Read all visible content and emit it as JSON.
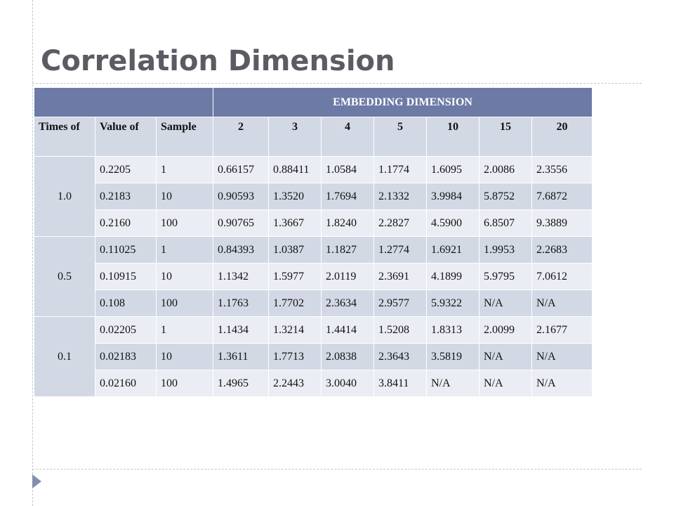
{
  "slide": {
    "title": "Correlation Dimension"
  },
  "table": {
    "embedding_header": "EMBEDDING DIMENSION",
    "headers": [
      "Times of",
      "Value of",
      "Sample",
      "2",
      "3",
      "4",
      "5",
      "10",
      "15",
      "20"
    ],
    "groups": [
      {
        "label": "1.0",
        "rows": [
          [
            "0.2205",
            "1",
            "0.66157",
            "0.88411",
            "1.0584",
            "1.1774",
            "1.6095",
            "2.0086",
            "2.3556"
          ],
          [
            "0.2183",
            "10",
            "0.90593",
            "1.3520",
            "1.7694",
            "2.1332",
            "3.9984",
            "5.8752",
            "7.6872"
          ],
          [
            "0.2160",
            "100",
            "0.90765",
            "1.3667",
            "1.8240",
            "2.2827",
            "4.5900",
            "6.8507",
            "9.3889"
          ]
        ]
      },
      {
        "label": "0.5",
        "rows": [
          [
            "0.11025",
            "1",
            "0.84393",
            "1.0387",
            "1.1827",
            "1.2774",
            "1.6921",
            "1.9953",
            "2.2683"
          ],
          [
            "0.10915",
            "10",
            "1.1342",
            "1.5977",
            "2.0119",
            "2.3691",
            "4.1899",
            "5.9795",
            "7.0612"
          ],
          [
            "0.108",
            "100",
            "1.1763",
            "1.7702",
            "2.3634",
            "2.9577",
            "5.9322",
            "N/A",
            "N/A"
          ]
        ]
      },
      {
        "label": "0.1",
        "rows": [
          [
            "0.02205",
            "1",
            "1.1434",
            "1.3214",
            "1.4414",
            "1.5208",
            "1.8313",
            "2.0099",
            "2.1677"
          ],
          [
            "0.02183",
            "10",
            "1.3611",
            "1.7713",
            "2.0838",
            "2.3643",
            "3.5819",
            "N/A",
            "N/A"
          ],
          [
            "0.02160",
            "100",
            "1.4965",
            "2.2443",
            "3.0040",
            "3.8411",
            "N/A",
            "N/A",
            "N/A"
          ]
        ]
      }
    ]
  }
}
